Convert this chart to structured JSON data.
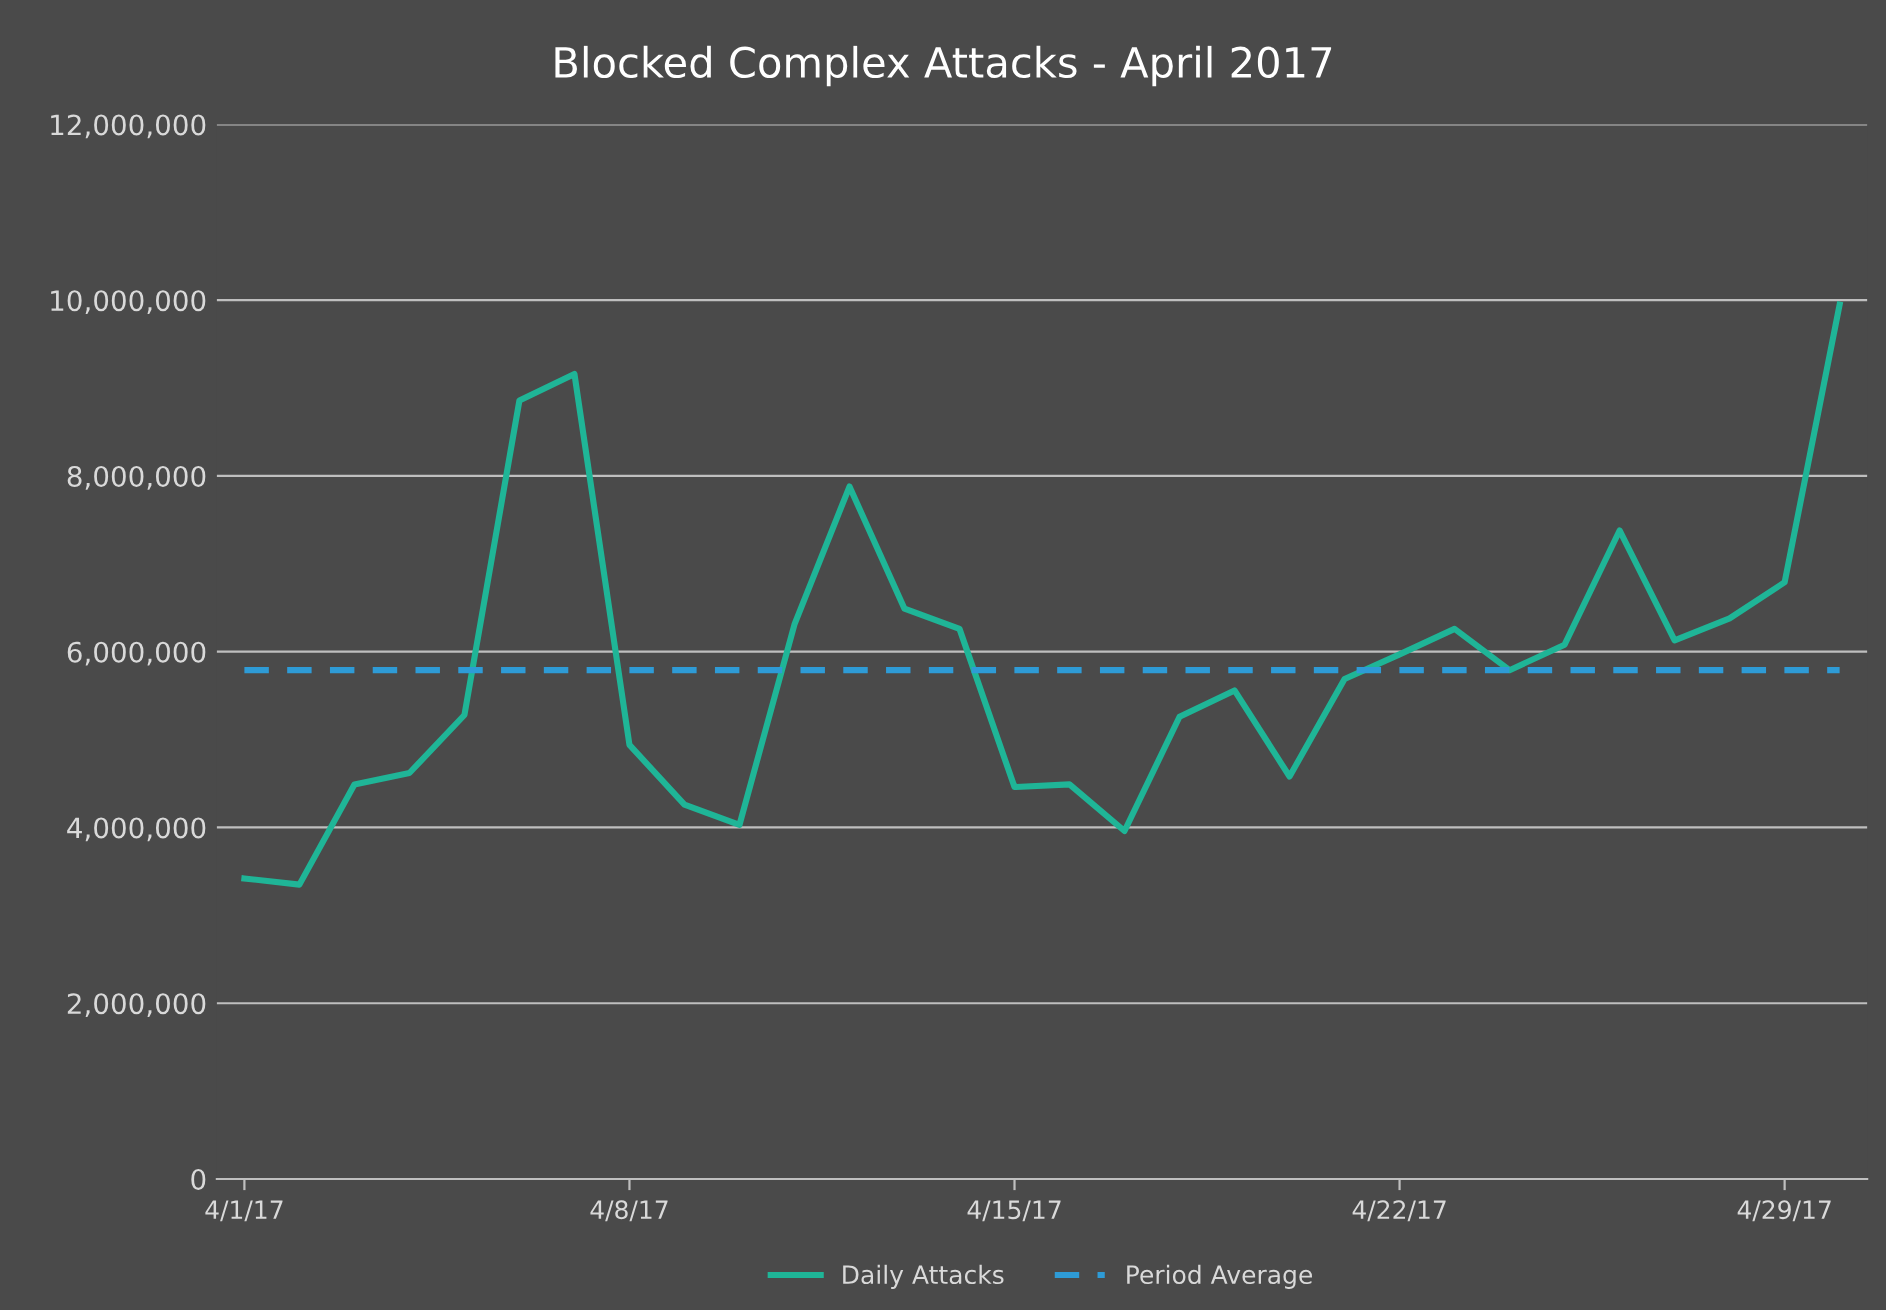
{
  "chart_data": {
    "type": "line",
    "title": "Blocked Complex Attacks - April 2017",
    "categories": [
      "4/1/17",
      null,
      null,
      null,
      null,
      null,
      null,
      "4/8/17",
      null,
      null,
      null,
      null,
      null,
      null,
      "4/15/17",
      null,
      null,
      null,
      null,
      null,
      null,
      "4/22/17",
      null,
      null,
      null,
      null,
      null,
      null,
      "4/29/17",
      null
    ],
    "series": [
      {
        "name": "Daily Attacks",
        "color": "#1fb597",
        "line_style": "solid",
        "values": [
          3420000,
          3350000,
          4490000,
          4620000,
          5280000,
          8860000,
          9160000,
          4940000,
          4260000,
          4030000,
          6310000,
          7880000,
          6490000,
          6260000,
          4460000,
          4490000,
          3960000,
          5260000,
          5560000,
          4580000,
          5690000,
          5970000,
          6260000,
          5790000,
          6080000,
          7380000,
          6130000,
          6380000,
          6790000,
          9950000
        ]
      },
      {
        "name": "Period Average",
        "color": "#2e9bd6",
        "line_style": "dashed",
        "values": [
          5790000,
          5790000,
          5790000,
          5790000,
          5790000,
          5790000,
          5790000,
          5790000,
          5790000,
          5790000,
          5790000,
          5790000,
          5790000,
          5790000,
          5790000,
          5790000,
          5790000,
          5790000,
          5790000,
          5790000,
          5790000,
          5790000,
          5790000,
          5790000,
          5790000,
          5790000,
          5790000,
          5790000,
          5790000,
          5790000
        ]
      }
    ],
    "ylim": [
      0,
      12000000
    ],
    "yticks": [
      {
        "value": 0,
        "label": "0"
      },
      {
        "value": 2000000,
        "label": "2,000,000"
      },
      {
        "value": 4000000,
        "label": "4,000,000"
      },
      {
        "value": 6000000,
        "label": "6,000,000"
      },
      {
        "value": 8000000,
        "label": "8,000,000"
      },
      {
        "value": 10000000,
        "label": "10,000,000"
      },
      {
        "value": 12000000,
        "label": "12,000,000"
      }
    ],
    "grid": "y",
    "legend": "bottom",
    "marker": "none"
  }
}
